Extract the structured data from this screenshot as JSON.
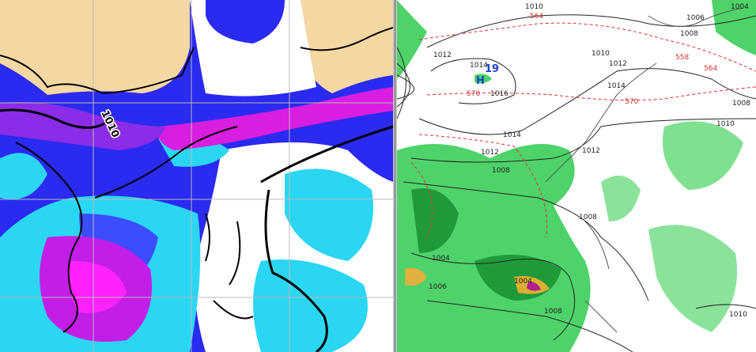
{
  "left_map": {
    "labels": [
      "1010"
    ]
  },
  "right_map": {
    "labels": [
      "1010",
      "564",
      "1004",
      "1006",
      "1008",
      "1012",
      "1014",
      "19",
      "H",
      "570",
      "1016",
      "1010",
      "1012",
      "558",
      "564",
      "1014",
      "570",
      "1008",
      "1010",
      "1014",
      "1012",
      "1012",
      "1008",
      "1008",
      "1004",
      "1006",
      "1004",
      "1008",
      "1010"
    ]
  }
}
